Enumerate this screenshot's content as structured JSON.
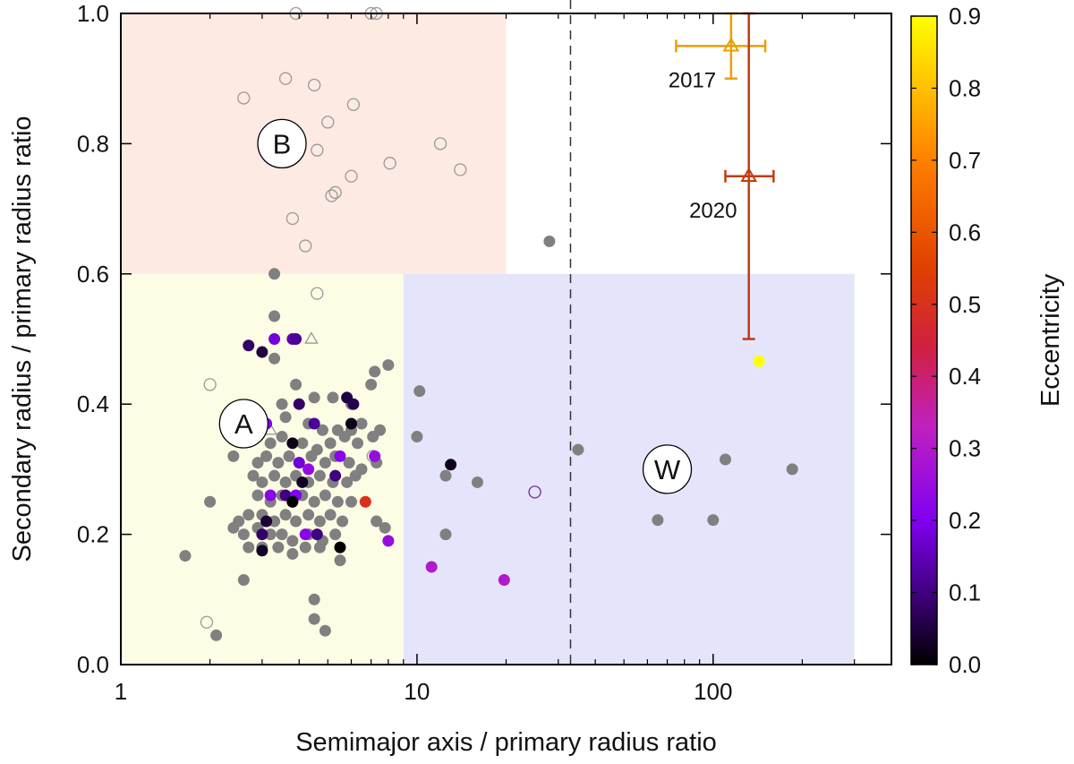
{
  "chart_data": {
    "type": "scatter",
    "xscale": "log",
    "xlim": [
      1,
      400
    ],
    "ylim": [
      0,
      1.0
    ],
    "xlabel": "Semimajor axis / primary radius ratio",
    "ylabel": "Secondary radius / primary radius ratio",
    "xticks": [
      {
        "value": 1,
        "label": "1"
      },
      {
        "value": 10,
        "label": "10"
      },
      {
        "value": 100,
        "label": "100"
      }
    ],
    "yticks": [
      0.0,
      0.2,
      0.4,
      0.6,
      0.8,
      1.0
    ],
    "ytick_labels": [
      "0.0",
      "0.2",
      "0.4",
      "0.6",
      "0.8",
      "1.0"
    ],
    "colorbar": {
      "label": "Eccentricity",
      "min": 0,
      "max": 0.9,
      "ticks": [
        0.0,
        0.1,
        0.2,
        0.3,
        0.4,
        0.5,
        0.6,
        0.7,
        0.8,
        0.9
      ],
      "tick_labels": [
        "0.0",
        "0.1",
        "0.2",
        "0.3",
        "0.4",
        "0.5",
        "0.6",
        "0.7",
        "0.8",
        "0.9"
      ],
      "stops": [
        {
          "v": 0.0,
          "color": "#000000"
        },
        {
          "v": 0.1,
          "color": "#400080"
        },
        {
          "v": 0.2,
          "color": "#8000f0"
        },
        {
          "v": 0.33,
          "color": "#c020c0"
        },
        {
          "v": 0.44,
          "color": "#d02040"
        },
        {
          "v": 0.55,
          "color": "#e04000"
        },
        {
          "v": 0.7,
          "color": "#ff8000"
        },
        {
          "v": 0.8,
          "color": "#ffc000"
        },
        {
          "v": 0.9,
          "color": "#ffff00"
        }
      ]
    },
    "regions": [
      {
        "label": "B",
        "x": [
          1,
          20
        ],
        "y": [
          0.6,
          1.0
        ],
        "color": "#fdeae2",
        "label_at": [
          3.5,
          0.8
        ]
      },
      {
        "label": "A",
        "x": [
          1,
          9
        ],
        "y": [
          0.0,
          0.6
        ],
        "color": "#fdfde6",
        "label_at": [
          2.6,
          0.37
        ]
      },
      {
        "label": "W",
        "x": [
          9,
          300
        ],
        "y": [
          0.0,
          0.6
        ],
        "color": "#e4e5fb",
        "label_at": [
          70,
          0.3
        ]
      }
    ],
    "vline": {
      "x": 33
    },
    "series": [
      {
        "name": "open-circles",
        "marker": "open-circle",
        "color": "#999999",
        "points": [
          [
            3.9,
            1.0
          ],
          [
            7.0,
            1.0
          ],
          [
            7.3,
            1.0
          ],
          [
            3.6,
            0.9
          ],
          [
            4.5,
            0.89
          ],
          [
            2.6,
            0.87
          ],
          [
            6.1,
            0.86
          ],
          [
            5.0,
            0.833
          ],
          [
            4.6,
            0.79
          ],
          [
            8.1,
            0.77
          ],
          [
            12.0,
            0.8
          ],
          [
            14.0,
            0.76
          ],
          [
            6.0,
            0.75
          ],
          [
            5.3,
            0.725
          ],
          [
            5.15,
            0.72
          ],
          [
            3.8,
            0.685
          ],
          [
            4.2,
            0.643
          ],
          [
            4.6,
            0.57
          ],
          [
            2.0,
            0.43
          ],
          [
            7.1,
            0.32
          ],
          [
            1.95,
            0.065
          ]
        ]
      },
      {
        "name": "open-triangles",
        "marker": "open-triangle",
        "color": "#999999",
        "points": [
          [
            4.4,
            0.5
          ],
          [
            3.2,
            0.36
          ]
        ]
      },
      {
        "name": "open-purple",
        "marker": "open-circle",
        "color": "#7a2a90",
        "points": [
          [
            25,
            0.265
          ]
        ]
      },
      {
        "name": "gray-filled",
        "marker": "filled-circle",
        "color": "#808080",
        "points": [
          [
            28,
            0.65
          ],
          [
            3.3,
            0.6
          ],
          [
            3.3,
            0.535
          ],
          [
            3.3,
            0.47
          ],
          [
            8.0,
            0.46
          ],
          [
            7.2,
            0.45
          ],
          [
            7.0,
            0.43
          ],
          [
            3.5,
            0.4
          ],
          [
            4.5,
            0.41
          ],
          [
            3.9,
            0.43
          ],
          [
            5.2,
            0.41
          ],
          [
            6.0,
            0.4
          ],
          [
            3.6,
            0.38
          ],
          [
            4.3,
            0.37
          ],
          [
            4.8,
            0.36
          ],
          [
            5.4,
            0.36
          ],
          [
            6.0,
            0.36
          ],
          [
            6.5,
            0.37
          ],
          [
            7.5,
            0.36
          ],
          [
            3.2,
            0.34
          ],
          [
            3.5,
            0.35
          ],
          [
            4.1,
            0.34
          ],
          [
            4.6,
            0.33
          ],
          [
            5.1,
            0.34
          ],
          [
            5.7,
            0.35
          ],
          [
            6.3,
            0.34
          ],
          [
            7.1,
            0.35
          ],
          [
            2.9,
            0.31
          ],
          [
            3.1,
            0.32
          ],
          [
            3.4,
            0.31
          ],
          [
            3.7,
            0.32
          ],
          [
            4.0,
            0.31
          ],
          [
            4.4,
            0.32
          ],
          [
            4.9,
            0.31
          ],
          [
            5.3,
            0.32
          ],
          [
            5.9,
            0.31
          ],
          [
            6.5,
            0.3
          ],
          [
            7.3,
            0.31
          ],
          [
            2.4,
            0.32
          ],
          [
            2.8,
            0.29
          ],
          [
            3.0,
            0.28
          ],
          [
            3.3,
            0.29
          ],
          [
            3.6,
            0.28
          ],
          [
            3.9,
            0.29
          ],
          [
            4.3,
            0.28
          ],
          [
            4.7,
            0.29
          ],
          [
            5.2,
            0.28
          ],
          [
            5.8,
            0.28
          ],
          [
            6.2,
            0.29
          ],
          [
            2.9,
            0.26
          ],
          [
            3.2,
            0.25
          ],
          [
            3.5,
            0.26
          ],
          [
            3.8,
            0.25
          ],
          [
            4.1,
            0.26
          ],
          [
            4.5,
            0.25
          ],
          [
            4.9,
            0.26
          ],
          [
            5.4,
            0.25
          ],
          [
            6.0,
            0.25
          ],
          [
            2.5,
            0.22
          ],
          [
            2.7,
            0.23
          ],
          [
            3.0,
            0.23
          ],
          [
            3.3,
            0.22
          ],
          [
            3.6,
            0.23
          ],
          [
            3.9,
            0.22
          ],
          [
            4.3,
            0.23
          ],
          [
            4.7,
            0.22
          ],
          [
            5.1,
            0.23
          ],
          [
            5.6,
            0.22
          ],
          [
            2.4,
            0.21
          ],
          [
            2.6,
            0.2
          ],
          [
            2.9,
            0.21
          ],
          [
            3.2,
            0.2
          ],
          [
            3.5,
            0.2
          ],
          [
            3.8,
            0.19
          ],
          [
            4.3,
            0.2
          ],
          [
            4.8,
            0.19
          ],
          [
            5.3,
            0.2
          ],
          [
            2.7,
            0.18
          ],
          [
            3.0,
            0.18
          ],
          [
            3.4,
            0.18
          ],
          [
            3.8,
            0.17
          ],
          [
            4.2,
            0.18
          ],
          [
            4.7,
            0.18
          ],
          [
            2.0,
            0.25
          ],
          [
            1.65,
            0.167
          ],
          [
            2.6,
            0.13
          ],
          [
            4.5,
            0.1
          ],
          [
            4.5,
            0.07
          ],
          [
            4.9,
            0.052
          ],
          [
            2.1,
            0.045
          ],
          [
            5.5,
            0.16
          ],
          [
            7.3,
            0.22
          ],
          [
            7.8,
            0.21
          ],
          [
            10.2,
            0.42
          ],
          [
            10.0,
            0.35
          ],
          [
            12.5,
            0.29
          ],
          [
            12.5,
            0.2
          ],
          [
            16.0,
            0.28
          ],
          [
            35,
            0.33
          ],
          [
            110,
            0.315
          ],
          [
            185,
            0.3
          ],
          [
            65,
            0.222
          ],
          [
            100,
            0.222
          ]
        ]
      },
      {
        "name": "colored-filled",
        "marker": "filled-circle",
        "color_by": "eccentricity",
        "points": [
          [
            2.7,
            0.49,
            0.08
          ],
          [
            3.0,
            0.48,
            0.05
          ],
          [
            3.3,
            0.5,
            0.18
          ],
          [
            3.8,
            0.5,
            0.15
          ],
          [
            3.9,
            0.5,
            0.12
          ],
          [
            4.0,
            0.4,
            0.08
          ],
          [
            5.8,
            0.41,
            0.05
          ],
          [
            6.1,
            0.4,
            0.06
          ],
          [
            4.5,
            0.37,
            0.12
          ],
          [
            3.1,
            0.37,
            0.2
          ],
          [
            6.0,
            0.37,
            0.02
          ],
          [
            3.8,
            0.34,
            0.02
          ],
          [
            5.5,
            0.32,
            0.22
          ],
          [
            7.2,
            0.32,
            0.25
          ],
          [
            4.0,
            0.31,
            0.18
          ],
          [
            4.3,
            0.3,
            0.24
          ],
          [
            5.3,
            0.29,
            0.1
          ],
          [
            3.6,
            0.26,
            0.1
          ],
          [
            3.2,
            0.26,
            0.22
          ],
          [
            4.1,
            0.28,
            0.03
          ],
          [
            3.9,
            0.26,
            0.2
          ],
          [
            3.8,
            0.25,
            0.0
          ],
          [
            6.7,
            0.25,
            0.5
          ],
          [
            3.1,
            0.22,
            0.04
          ],
          [
            3.0,
            0.2,
            0.08
          ],
          [
            4.2,
            0.2,
            0.22
          ],
          [
            4.6,
            0.2,
            0.1
          ],
          [
            3.0,
            0.175,
            0.03
          ],
          [
            5.5,
            0.18,
            0.0
          ],
          [
            8.0,
            0.19,
            0.25
          ],
          [
            13.0,
            0.307,
            0.02
          ],
          [
            11.2,
            0.15,
            0.3
          ],
          [
            19.7,
            0.13,
            0.3
          ],
          [
            143,
            0.466,
            0.9
          ]
        ]
      }
    ],
    "error_bars": [
      {
        "label": "2017",
        "x": 115,
        "y": 0.95,
        "xlow": 75,
        "xhigh": 150,
        "ylow": 0.9,
        "yhigh": 1.0,
        "color": "#e8a000",
        "marker": "open-triangle",
        "label_at": [
          85,
          0.9
        ]
      },
      {
        "label": "2020",
        "x": 132,
        "y": 0.75,
        "xlow": 110,
        "xhigh": 160,
        "ylow": 0.5,
        "yhigh": 1.0,
        "color": "#c23a10",
        "marker": "open-triangle",
        "label_at": [
          100,
          0.7
        ]
      }
    ]
  }
}
